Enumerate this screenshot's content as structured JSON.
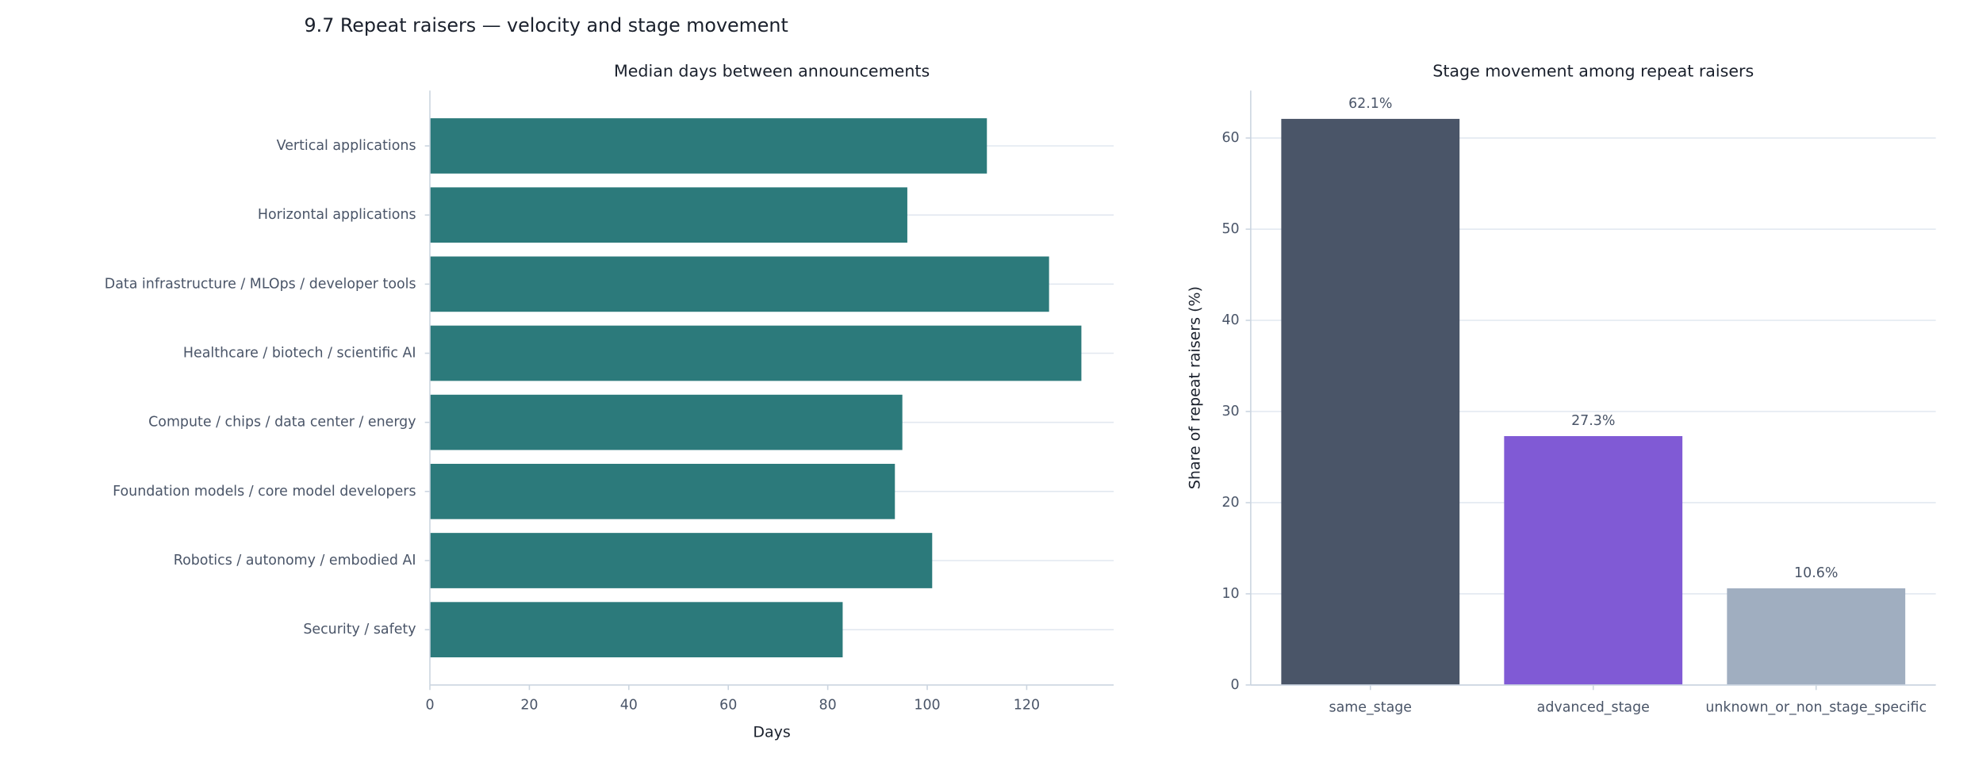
{
  "title": "9.7 Repeat raisers — velocity and stage movement",
  "chart_data": [
    {
      "type": "bar",
      "orientation": "horizontal",
      "title": "Median days between announcements",
      "xlabel": "Days",
      "categories": [
        "Vertical applications",
        "Horizontal applications",
        "Data infrastructure / MLOps / developer tools",
        "Healthcare / biotech / scientific AI",
        "Compute / chips / data center / energy",
        "Foundation models / core model developers",
        "Robotics / autonomy / embodied AI",
        "Security / safety"
      ],
      "values": [
        112,
        96,
        124.5,
        131,
        95,
        93.5,
        101,
        83
      ],
      "color": "#2c7a7b",
      "xlim": [
        0,
        137.5
      ],
      "xticks": [
        0,
        20,
        40,
        60,
        80,
        100,
        120
      ],
      "grid": true
    },
    {
      "type": "bar",
      "orientation": "vertical",
      "title": "Stage movement among repeat raisers",
      "ylabel": "Share of repeat raisers (%)",
      "categories": [
        "same_stage",
        "advanced_stage",
        "unknown_or_non_stage_specific"
      ],
      "values": [
        62.1,
        27.3,
        10.6
      ],
      "value_labels": [
        "62.1%",
        "27.3%",
        "10.6%"
      ],
      "colors": [
        "#4a5568",
        "#805ad5",
        "#a0aec0"
      ],
      "ylim": [
        0,
        65.2
      ],
      "yticks": [
        0,
        10,
        20,
        30,
        40,
        50,
        60
      ],
      "grid": true
    }
  ]
}
